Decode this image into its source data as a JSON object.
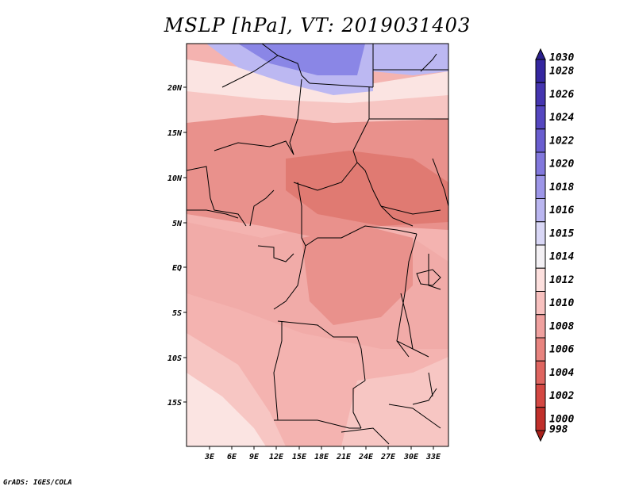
{
  "title": "MSLP [hPa], VT: 2019031403",
  "credit": "GrADS: IGES/COLA",
  "axes": {
    "lat_labels": [
      "20N",
      "15N",
      "10N",
      "5N",
      "EQ",
      "5S",
      "10S",
      "15S"
    ],
    "lon_labels": [
      "3E",
      "6E",
      "9E",
      "12E",
      "15E",
      "18E",
      "21E",
      "24E",
      "27E",
      "30E",
      "33E"
    ]
  },
  "colorbar": {
    "levels": [
      {
        "value": "1030",
        "color": "#2a1f8c"
      },
      {
        "value": "1028",
        "color": "#3527a0"
      },
      {
        "value": "1026",
        "color": "#4535b0"
      },
      {
        "value": "1024",
        "color": "#5547c0"
      },
      {
        "value": "1022",
        "color": "#6a5ed0"
      },
      {
        "value": "1020",
        "color": "#8278dd"
      },
      {
        "value": "1018",
        "color": "#9d96e8"
      },
      {
        "value": "1016",
        "color": "#bab6f0"
      },
      {
        "value": "1015",
        "color": "#d9d7f6"
      },
      {
        "value": "1014",
        "color": "#f3f0f4"
      },
      {
        "value": "1012",
        "color": "#fde0de"
      },
      {
        "value": "1010",
        "color": "#f8c1bf"
      },
      {
        "value": "1008",
        "color": "#f0a19f"
      },
      {
        "value": "1006",
        "color": "#e8847f"
      },
      {
        "value": "1004",
        "color": "#df6560"
      },
      {
        "value": "1002",
        "color": "#d44843"
      },
      {
        "value": "1000",
        "color": "#c1302b"
      },
      {
        "value": "998",
        "color": "#a81f1a"
      }
    ]
  },
  "field_colors": {
    "high": "#8a86e6",
    "high_mid": "#bcb8f2",
    "light": "#fbe4e2",
    "p1012": "#f7c6c3",
    "p1010": "#f1aba8",
    "p1008": "#e9918c",
    "p1006": "#e07a72"
  },
  "border_color": "#000000"
}
